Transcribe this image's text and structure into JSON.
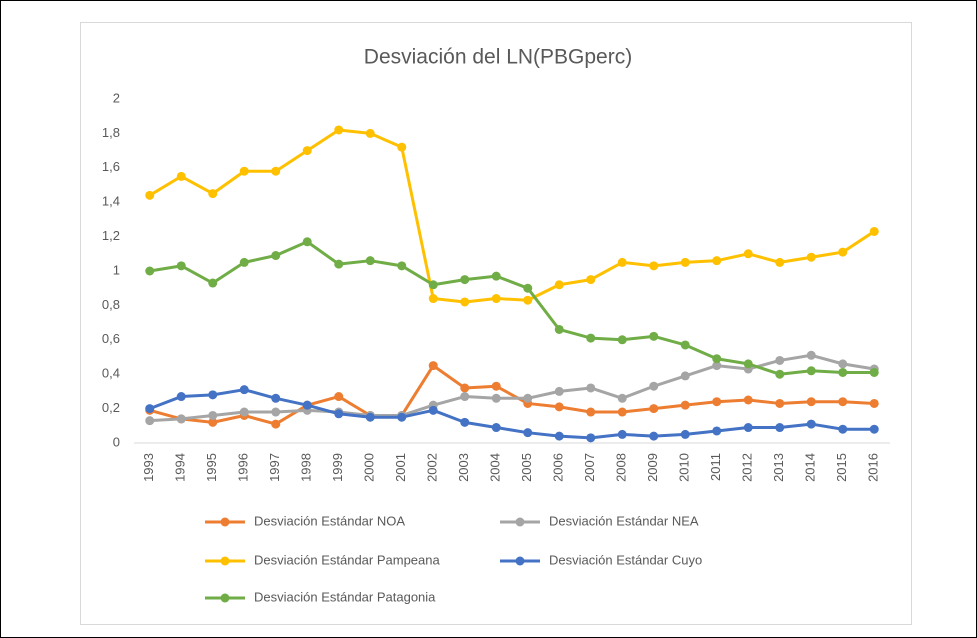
{
  "chart_data": {
    "type": "line",
    "title": "Desviación del LN(PBGperc)",
    "categories": [
      "1993",
      "1994",
      "1995",
      "1996",
      "1997",
      "1998",
      "1999",
      "2000",
      "2001",
      "2002",
      "2003",
      "2004",
      "2005",
      "2006",
      "2007",
      "2008",
      "2009",
      "2010",
      "2011",
      "2012",
      "2013",
      "2014",
      "2015",
      "2016"
    ],
    "series": [
      {
        "name": "Desviación Estándar NOA",
        "color": "#ed7d31",
        "values": [
          0.19,
          0.14,
          0.12,
          0.16,
          0.11,
          0.22,
          0.27,
          0.16,
          0.16,
          0.45,
          0.32,
          0.33,
          0.23,
          0.21,
          0.18,
          0.18,
          0.2,
          0.22,
          0.24,
          0.25,
          0.23,
          0.24,
          0.24,
          0.23
        ]
      },
      {
        "name": "Desviación Estándar NEA",
        "color": "#a5a5a5",
        "values": [
          0.13,
          0.14,
          0.16,
          0.18,
          0.18,
          0.19,
          0.18,
          0.16,
          0.16,
          0.22,
          0.27,
          0.26,
          0.26,
          0.3,
          0.32,
          0.26,
          0.33,
          0.39,
          0.45,
          0.43,
          0.48,
          0.51,
          0.46,
          0.43
        ]
      },
      {
        "name": "Desviación Estándar Pampeana",
        "color": "#ffc000",
        "values": [
          1.44,
          1.55,
          1.45,
          1.58,
          1.58,
          1.7,
          1.82,
          1.8,
          1.72,
          0.84,
          0.82,
          0.84,
          0.83,
          0.92,
          0.95,
          1.05,
          1.03,
          1.05,
          1.06,
          1.1,
          1.05,
          1.08,
          1.11,
          1.23
        ]
      },
      {
        "name": "Desviación Estándar Cuyo",
        "color": "#4472c4",
        "values": [
          0.2,
          0.27,
          0.28,
          0.31,
          0.26,
          0.22,
          0.17,
          0.15,
          0.15,
          0.19,
          0.12,
          0.09,
          0.06,
          0.04,
          0.03,
          0.05,
          0.04,
          0.05,
          0.07,
          0.09,
          0.09,
          0.11,
          0.08,
          0.08
        ]
      },
      {
        "name": "Desviación Estándar Patagonia",
        "color": "#70ad47",
        "values": [
          1.0,
          1.03,
          0.93,
          1.05,
          1.09,
          1.17,
          1.04,
          1.06,
          1.03,
          0.92,
          0.95,
          0.97,
          0.9,
          0.66,
          0.61,
          0.6,
          0.62,
          0.57,
          0.49,
          0.46,
          0.4,
          0.42,
          0.41,
          0.41
        ]
      }
    ],
    "ylim": [
      0,
      2
    ],
    "yticks": [
      0,
      {
        "value": 0.2,
        "label": "0,2"
      },
      {
        "value": 0.4,
        "label": "0,4"
      },
      {
        "value": 0.6,
        "label": "0,6"
      },
      {
        "value": 0.8,
        "label": "0,8"
      },
      1,
      {
        "value": 1.2,
        "label": "1,2"
      },
      {
        "value": 1.4,
        "label": "1,4"
      },
      {
        "value": 1.6,
        "label": "1,6"
      },
      {
        "value": 1.8,
        "label": "1,8"
      },
      2
    ],
    "grid": false
  }
}
